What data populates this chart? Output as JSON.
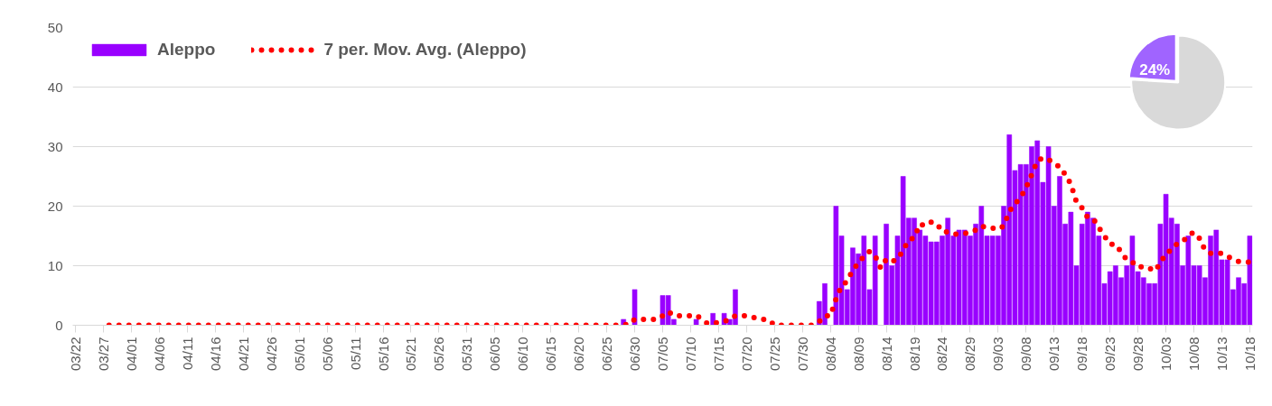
{
  "chart_data": [
    {
      "type": "bar",
      "categories": [
        "03/22",
        null,
        null,
        null,
        null,
        "03/27",
        null,
        null,
        null,
        null,
        "04/01",
        null,
        null,
        null,
        null,
        "04/06",
        null,
        null,
        null,
        null,
        "04/11",
        null,
        null,
        null,
        null,
        "04/16",
        null,
        null,
        null,
        null,
        "04/21",
        null,
        null,
        null,
        null,
        "04/26",
        null,
        null,
        null,
        null,
        "05/01",
        null,
        null,
        null,
        null,
        "05/06",
        null,
        null,
        null,
        null,
        "05/11",
        null,
        null,
        null,
        null,
        "05/16",
        null,
        null,
        null,
        null,
        "05/21",
        null,
        null,
        null,
        null,
        "05/26",
        null,
        null,
        null,
        null,
        "05/31",
        null,
        null,
        null,
        null,
        "06/05",
        null,
        null,
        null,
        null,
        "06/10",
        null,
        null,
        null,
        null,
        "06/15",
        null,
        null,
        null,
        null,
        "06/20",
        null,
        null,
        null,
        null,
        "06/25",
        null,
        null,
        null,
        null,
        "06/30",
        null,
        null,
        null,
        null,
        "07/05",
        null,
        null,
        null,
        null,
        "07/10",
        null,
        null,
        null,
        null,
        "07/15",
        null,
        null,
        null,
        null,
        "07/20",
        null,
        null,
        null,
        null,
        "07/25",
        null,
        null,
        null,
        null,
        "07/30",
        null,
        null,
        null,
        null,
        "08/04",
        null,
        null,
        null,
        null,
        "08/09",
        null,
        null,
        null,
        null,
        "08/14",
        null,
        null,
        null,
        null,
        "08/19",
        null,
        null,
        null,
        null,
        "08/24",
        null,
        null,
        null,
        null,
        "08/29",
        null,
        null,
        null,
        null,
        "09/03",
        null,
        null,
        null,
        null,
        "09/08",
        null,
        null,
        null,
        null,
        "09/13",
        null,
        null,
        null,
        null,
        "09/18",
        null,
        null,
        null,
        null,
        "09/23",
        null,
        null,
        null,
        null,
        "09/28",
        null,
        null,
        null,
        null,
        "10/03",
        null,
        null,
        null,
        null,
        "10/08",
        null,
        null,
        null,
        null,
        "10/13",
        null,
        null,
        null,
        null,
        "10/18"
      ],
      "series": [
        {
          "name": "Aleppo",
          "type": "bar",
          "color": "#9900ff",
          "values": [
            0,
            0,
            0,
            0,
            0,
            0,
            0,
            0,
            0,
            0,
            0,
            0,
            0,
            0,
            0,
            0,
            0,
            0,
            0,
            0,
            0,
            0,
            0,
            0,
            0,
            0,
            0,
            0,
            0,
            0,
            0,
            0,
            0,
            0,
            0,
            0,
            0,
            0,
            0,
            0,
            0,
            0,
            0,
            0,
            0,
            0,
            0,
            0,
            0,
            0,
            0,
            0,
            0,
            0,
            0,
            0,
            0,
            0,
            0,
            0,
            0,
            0,
            0,
            0,
            0,
            0,
            0,
            0,
            0,
            0,
            0,
            0,
            0,
            0,
            0,
            0,
            0,
            0,
            0,
            0,
            0,
            0,
            0,
            0,
            0,
            0,
            0,
            0,
            0,
            0,
            0,
            0,
            0,
            0,
            0,
            0,
            0,
            0,
            1,
            0,
            6,
            0,
            0,
            0,
            0,
            5,
            5,
            1,
            0,
            0,
            0,
            1,
            0,
            0,
            2,
            0,
            2,
            1,
            6,
            0,
            0,
            0,
            0,
            0,
            0,
            0,
            0,
            0,
            0,
            0,
            0,
            0,
            0,
            4,
            7,
            0,
            20,
            15,
            6,
            13,
            12,
            15,
            6,
            15,
            0,
            17,
            10,
            15,
            25,
            18,
            18,
            16,
            15,
            14,
            14,
            15,
            18,
            15,
            16,
            16,
            15,
            17,
            20,
            15,
            15,
            15,
            20,
            32,
            26,
            27,
            27,
            30,
            31,
            24,
            30,
            20,
            25,
            17,
            19,
            10,
            17,
            19,
            18,
            15,
            7,
            9,
            10,
            8,
            10,
            15,
            9,
            8,
            7,
            7,
            17,
            22,
            18,
            17,
            10,
            15,
            10,
            10,
            8,
            15,
            16,
            11,
            11,
            6,
            8,
            7,
            15
          ]
        },
        {
          "name": "7 per. Mov. Avg. (Aleppo)",
          "type": "line",
          "line_style": "dotted",
          "color": "#ff0000",
          "values": [
            null,
            null,
            null,
            null,
            null,
            null,
            0,
            0,
            0,
            0,
            0,
            0,
            0,
            0,
            0,
            0,
            0,
            0,
            0,
            0,
            0,
            0,
            0,
            0,
            0,
            0,
            0,
            0,
            0,
            0,
            0,
            0,
            0,
            0,
            0,
            0,
            0,
            0,
            0,
            0,
            0,
            0,
            0,
            0,
            0,
            0,
            0,
            0,
            0,
            0,
            0,
            0,
            0,
            0,
            0,
            0,
            0,
            0,
            0,
            0,
            0,
            0,
            0,
            0,
            0,
            0,
            0,
            0,
            0,
            0,
            0,
            0,
            0,
            0,
            0,
            0,
            0,
            0,
            0,
            0,
            0,
            0,
            0,
            0,
            0,
            0,
            0,
            0,
            0,
            0,
            0,
            0,
            0,
            0,
            0,
            0,
            0,
            0,
            0.1,
            0.1,
            1,
            1,
            1,
            1,
            1,
            1.6,
            2.3,
            1.6,
            1.6,
            1.6,
            1.6,
            1.7,
            1,
            0.3,
            0.4,
            0.4,
            0.7,
            0.9,
            1.6,
            1.6,
            1.6,
            1.3,
            1.3,
            1,
            0.9,
            0,
            0,
            0,
            0,
            0,
            0,
            0,
            0,
            0.6,
            1.6,
            1.6,
            4.4,
            6.6,
            7.4,
            9.3,
            10.4,
            11.6,
            12.4,
            11.7,
            9.6,
            11.1,
            10.7,
            11.1,
            12.6,
            14.3,
            14.7,
            17,
            16.7,
            17.3,
            17.1,
            15.7,
            15.7,
            15.3,
            15.3,
            15.4,
            15.6,
            16,
            16.7,
            16.3,
            16.3,
            16.1,
            16.7,
            19.1,
            20.4,
            21.4,
            23.1,
            25.3,
            27.6,
            28.1,
            27.9,
            27,
            26.7,
            25.3,
            23.7,
            20.7,
            19.7,
            18.1,
            17.9,
            16.4,
            15,
            13.6,
            13.6,
            12.3,
            11,
            10.6,
            9.7,
            9.9,
            9.6,
            9.1,
            10.4,
            12.1,
            12.6,
            13.7,
            14,
            15.1,
            15.6,
            14.6,
            12.6,
            12.1,
            12,
            12.1,
            11.6,
            11,
            10.7,
            10.6,
            10.6
          ]
        }
      ],
      "ylim": [
        0,
        50
      ],
      "yticks": [
        0,
        10,
        20,
        30,
        40,
        50
      ],
      "grid": "y",
      "legend": "top left"
    },
    {
      "type": "pie",
      "categories": [
        null,
        null
      ],
      "values": [
        24,
        76
      ],
      "colors": [
        "#a064ff",
        "#d9d9d9"
      ],
      "value_labels": [
        "24%",
        null
      ]
    }
  ]
}
